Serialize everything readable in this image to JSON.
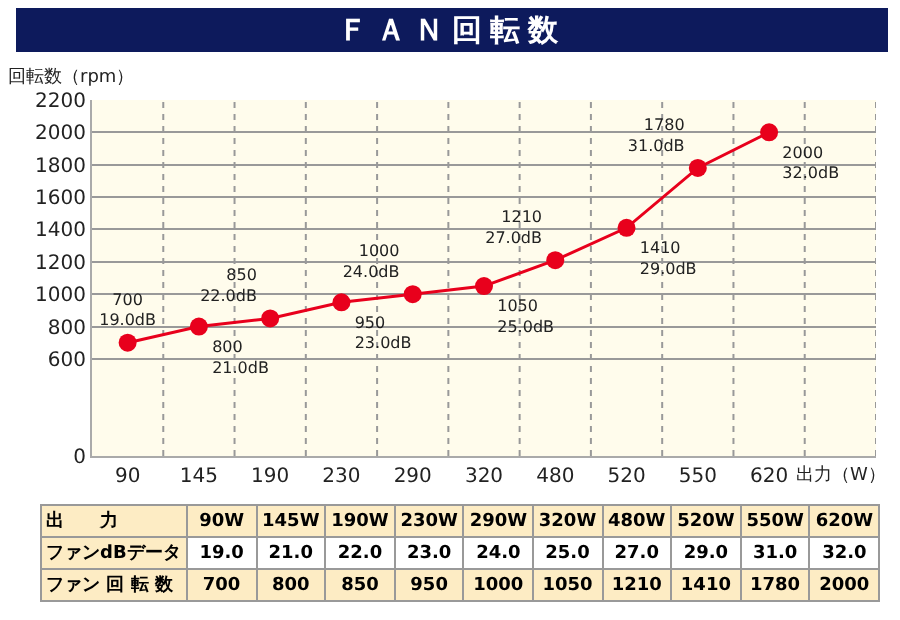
{
  "chart_data": {
    "type": "line",
    "title": "ＦＡＮ回転数",
    "ylabel": "回転数（rpm）",
    "xlabel": "出力（W）",
    "categories": [
      "90",
      "145",
      "190",
      "230",
      "290",
      "320",
      "480",
      "520",
      "550",
      "620"
    ],
    "series": [
      {
        "color": "#e8001c",
        "values": [
          700,
          800,
          850,
          950,
          1000,
          1050,
          1210,
          1410,
          1780,
          2000
        ],
        "value_labels": [
          "700\n19.0dB",
          "800\n21.0dB",
          "850\n22.0dB",
          "950\n23.0dB",
          "1000\n24.0dB",
          "1050\n25.0dB",
          "1210\n27.0dB",
          "1410\n29.0dB",
          "1780\n31.0dB",
          "2000\n32.0dB"
        ]
      }
    ],
    "ylim": [
      0,
      2200
    ],
    "yticks": [
      0,
      600,
      800,
      1000,
      1200,
      1400,
      1600,
      1800,
      2000,
      2200
    ],
    "grid": true,
    "marker": "circle",
    "line_style": "solid",
    "annotations": [
      "出　　力",
      "90W",
      "145W",
      "190W",
      "230W",
      "290W",
      "320W",
      "480W",
      "520W",
      "550W",
      "620W",
      "ファンdBデータ",
      "19.0",
      "21.0",
      "22.0",
      "23.0",
      "24.0",
      "25.0",
      "27.0",
      "29.0",
      "31.0",
      "32.0",
      "ファン 回 転 数",
      "700",
      "800",
      "850",
      "950",
      "1000",
      "1050",
      "1210",
      "1410",
      "1780",
      "2000"
    ]
  }
}
